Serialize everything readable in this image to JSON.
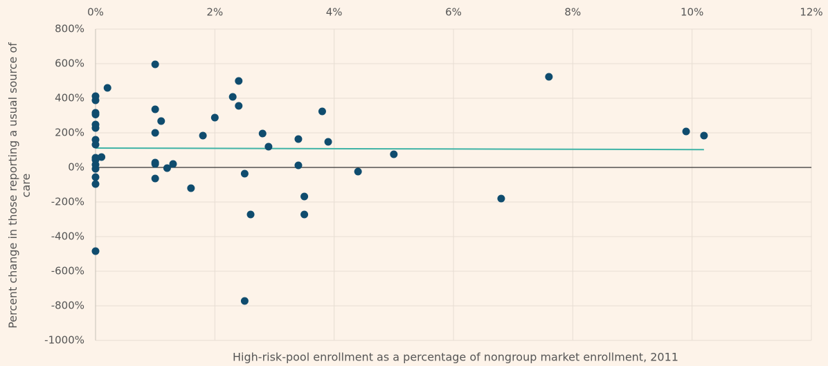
{
  "chart_data": {
    "type": "scatter",
    "x_label": "High-risk-pool enrollment as a percentage of nongroup market enrollment, 2011",
    "y_label": "Percent change in those reporting a usual source of care",
    "x": [
      0,
      0,
      0,
      0,
      0,
      0,
      0,
      0,
      0,
      0,
      0,
      0,
      0,
      0,
      0,
      0.1,
      0.2,
      1.0,
      1.0,
      1.0,
      1.0,
      1.0,
      1.0,
      1.1,
      1.2,
      1.3,
      1.6,
      1.8,
      2.0,
      2.3,
      2.4,
      2.4,
      2.5,
      2.5,
      2.6,
      2.8,
      2.9,
      3.4,
      3.4,
      3.5,
      3.5,
      3.8,
      3.9,
      4.4,
      5.0,
      6.8,
      7.6,
      9.9,
      10.2
    ],
    "values": [
      412,
      388,
      316,
      306,
      248,
      228,
      160,
      132,
      56,
      44,
      16,
      -8,
      -56,
      -96,
      -484,
      60,
      460,
      596,
      336,
      200,
      28,
      20,
      -64,
      268,
      -4,
      20,
      -120,
      184,
      288,
      408,
      500,
      356,
      -36,
      -772,
      -272,
      196,
      120,
      164,
      12,
      -168,
      -272,
      324,
      148,
      -24,
      76,
      -180,
      524,
      208,
      184
    ],
    "color": "#0f4c6e",
    "trendline": {
      "x": [
        0,
        10.2
      ],
      "values": [
        112,
        103
      ],
      "color": "#3fb3a6"
    },
    "xlim": [
      0,
      12
    ],
    "ylim": [
      -1000,
      800
    ],
    "xticks": [
      {
        "value": 0,
        "label": "0%"
      },
      {
        "value": 2,
        "label": "2%"
      },
      {
        "value": 4,
        "label": "4%"
      },
      {
        "value": 6,
        "label": "6%"
      },
      {
        "value": 8,
        "label": "8%"
      },
      {
        "value": 10,
        "label": "10%"
      },
      {
        "value": 12,
        "label": "12%"
      }
    ],
    "yticks": [
      {
        "value": 800,
        "label": "800%"
      },
      {
        "value": 600,
        "label": "600%"
      },
      {
        "value": 400,
        "label": "400%"
      },
      {
        "value": 200,
        "label": "200%"
      },
      {
        "value": 0,
        "label": "0%"
      },
      {
        "value": -200,
        "label": "-200%"
      },
      {
        "value": -400,
        "label": "-400%"
      },
      {
        "value": -600,
        "label": "-600%"
      },
      {
        "value": -800,
        "label": "-800%"
      },
      {
        "value": -1000,
        "label": "-1000%"
      }
    ],
    "grid": true
  }
}
